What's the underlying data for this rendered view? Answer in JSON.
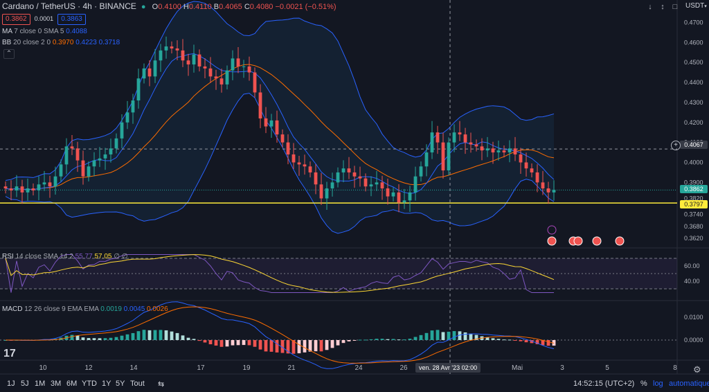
{
  "header": {
    "symbol": "Cardano / TetherUS · 4h · BINANCE",
    "ohlc": {
      "o_label": "O",
      "o": "0.4100",
      "h_label": "H",
      "h": "0.4110",
      "b_label": "B",
      "b": "0.4065",
      "c_label": "C",
      "c": "0.4080",
      "change": "−0.0021 (−0.51%)"
    },
    "bid": "0.3862",
    "spread": "0.0001",
    "ask": "0.3863",
    "currency": "USDT"
  },
  "indicators": {
    "ma": {
      "label": "MA",
      "params": "7 close 0 SMA 5",
      "value": "0.4088"
    },
    "bb": {
      "label": "BB",
      "params": "20 close 2 0",
      "basis": "0.3970",
      "upper": "0.4223",
      "lower": "0.3718"
    },
    "rsi": {
      "label": "RSI",
      "params": "14 close SMA 14 2",
      "value": "55.77",
      "ma": "57.05",
      "extra": "∅ ∅"
    },
    "macd": {
      "label": "MACD",
      "params": "12 26 close 9 EMA EMA",
      "hist": "0.0019",
      "macd": "0.0045",
      "signal": "0.0026"
    }
  },
  "price_axis": {
    "ticks": [
      "0.4700",
      "0.4600",
      "0.4500",
      "0.4400",
      "0.4300",
      "0.4200",
      "0.4100",
      "0.4000",
      "0.3900",
      "0.3820",
      "0.3740",
      "0.3680",
      "0.3620"
    ],
    "crosshair_price": "0.4067",
    "last_price": "0.3862",
    "line_price": "0.3797"
  },
  "rsi_axis": {
    "ticks": [
      "60.00",
      "40.00"
    ]
  },
  "macd_axis": {
    "ticks": [
      "0.0100",
      "0.0000"
    ]
  },
  "time_axis": {
    "ticks": [
      "10",
      "12",
      "14",
      "17",
      "19",
      "21",
      "24",
      "26",
      "Mai",
      "3",
      "5",
      "8"
    ],
    "crosshair_label": "ven. 28 Avr '23   02:00"
  },
  "toolbar": {
    "ranges": [
      "1J",
      "5J",
      "1M",
      "3M",
      "6M",
      "YTD",
      "1Y",
      "5Y",
      "Tout"
    ],
    "time": "14:52:15 (UTC+2)",
    "percent": "%",
    "log": "log",
    "auto": "automatique"
  },
  "colors": {
    "up": "#26a69a",
    "down": "#ef5350",
    "bb": "#2962ff",
    "basis": "#ff6d00",
    "ma": "#2962ff",
    "hline": "#ffeb3b",
    "rsi": "#7e57c2",
    "rsi_ma": "#fdd835",
    "bg": "#131722"
  },
  "chart_data": {
    "type": "candlestick",
    "source_note": "",
    "price_range": [
      0.36,
      0.475
    ],
    "hline": 0.3797,
    "closes": [
      0.387,
      0.386,
      0.388,
      0.385,
      0.387,
      0.386,
      0.389,
      0.39,
      0.388,
      0.393,
      0.399,
      0.408,
      0.407,
      0.401,
      0.393,
      0.398,
      0.401,
      0.402,
      0.404,
      0.407,
      0.412,
      0.42,
      0.425,
      0.431,
      0.442,
      0.447,
      0.443,
      0.451,
      0.456,
      0.458,
      0.457,
      0.456,
      0.451,
      0.449,
      0.454,
      0.448,
      0.447,
      0.443,
      0.442,
      0.439,
      0.446,
      0.452,
      0.448,
      0.448,
      0.445,
      0.435,
      0.422,
      0.418,
      0.421,
      0.414,
      0.41,
      0.404,
      0.4,
      0.399,
      0.398,
      0.395,
      0.389,
      0.382,
      0.387,
      0.39,
      0.395,
      0.397,
      0.395,
      0.393,
      0.392,
      0.388,
      0.389,
      0.39,
      0.387,
      0.383,
      0.385,
      0.38,
      0.381,
      0.385,
      0.393,
      0.398,
      0.405,
      0.415,
      0.41,
      0.396,
      0.41,
      0.415,
      0.414,
      0.41,
      0.409,
      0.408,
      0.406,
      0.407,
      0.405,
      0.406,
      0.405,
      0.407,
      0.404,
      0.4,
      0.397,
      0.395,
      0.39,
      0.387,
      0.385,
      0.3862
    ]
  }
}
